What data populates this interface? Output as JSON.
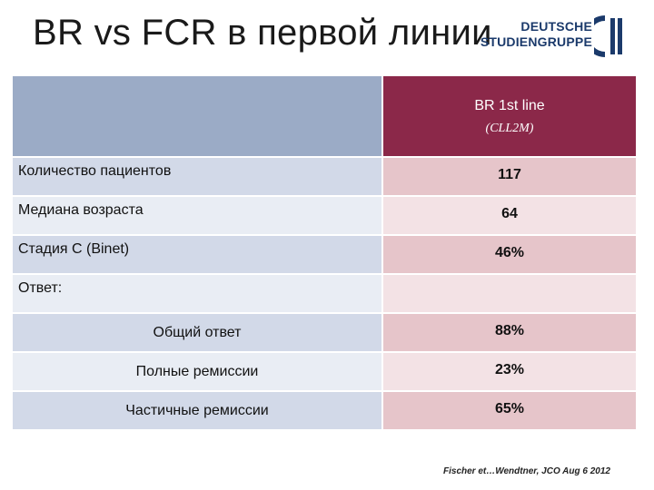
{
  "slide": {
    "title": "BR vs FCR в первой линии"
  },
  "logo": {
    "line1": "DEUTSCHE",
    "line2": "STUDIENGRUPPE",
    "icon": "cll-logo-icon"
  },
  "table": {
    "header": {
      "col_title": "BR 1st line",
      "col_subtitle": "(CLL2M)"
    },
    "rows": [
      {
        "label": "Количество пациентов",
        "value": "117"
      },
      {
        "label": "Медиана возраста",
        "value": "64"
      },
      {
        "label": "Стадия C (Binet)",
        "value": "46%"
      },
      {
        "label": "Ответ:",
        "value": ""
      },
      {
        "label": "Общий ответ",
        "value": "88%"
      },
      {
        "label": "Полные ремиссии",
        "value": "23%"
      },
      {
        "label": "Частичные ремиссии",
        "value": "65%"
      }
    ]
  },
  "citation": "Fischer et…Wendtner, JCO Aug 6 2012",
  "colors": {
    "header_left": "#9babc6",
    "header_right": "#8b2849",
    "row_left_dark": "#d2d9e8",
    "row_left_light": "#e9edf4",
    "row_right_dark": "#e6c5ca",
    "row_right_light": "#f3e2e5",
    "logo_blue": "#1b3a6b"
  }
}
